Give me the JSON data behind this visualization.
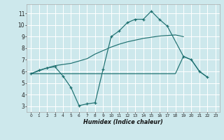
{
  "background_color": "#cde8ec",
  "grid_color": "#ffffff",
  "line_color": "#1e7070",
  "xlabel": "Humidex (Indice chaleur)",
  "xlim": [
    -0.5,
    23.5
  ],
  "ylim": [
    2.5,
    11.8
  ],
  "xtick_vals": [
    0,
    1,
    2,
    3,
    4,
    5,
    6,
    7,
    8,
    9,
    10,
    11,
    12,
    13,
    14,
    15,
    16,
    17,
    18,
    19,
    20,
    21,
    22,
    23
  ],
  "ytick_vals": [
    3,
    4,
    5,
    6,
    7,
    8,
    9,
    10,
    11
  ],
  "wavy_x": [
    0,
    1,
    2,
    3,
    4,
    5,
    6,
    7,
    8,
    9,
    10,
    11,
    12,
    13,
    14,
    15,
    16,
    17,
    19,
    20,
    21,
    22
  ],
  "wavy_y": [
    5.8,
    6.1,
    6.3,
    6.4,
    5.6,
    4.6,
    3.05,
    3.2,
    3.3,
    6.2,
    9.0,
    9.5,
    10.2,
    10.5,
    10.5,
    11.2,
    10.5,
    9.9,
    7.3,
    7.0,
    6.0,
    5.5
  ],
  "upper_x": [
    0,
    2,
    3,
    4,
    5,
    6,
    7,
    8,
    9,
    10,
    11,
    12,
    13,
    14,
    15,
    16,
    17,
    18,
    19
  ],
  "upper_y": [
    5.8,
    6.3,
    6.5,
    6.6,
    6.7,
    6.9,
    7.1,
    7.5,
    7.8,
    8.1,
    8.35,
    8.55,
    8.7,
    8.85,
    8.95,
    9.05,
    9.1,
    9.15,
    9.0
  ],
  "lower_x": [
    0,
    1,
    2,
    3,
    4,
    5,
    6,
    7,
    8,
    9,
    10,
    11,
    12,
    13,
    14,
    15,
    16,
    17,
    18,
    19,
    20,
    21,
    22
  ],
  "lower_y": [
    5.8,
    5.8,
    5.8,
    5.8,
    5.8,
    5.8,
    5.8,
    5.8,
    5.8,
    5.8,
    5.8,
    5.8,
    5.8,
    5.8,
    5.8,
    5.8,
    5.8,
    5.8,
    5.8,
    7.3,
    7.0,
    6.0,
    5.5
  ]
}
